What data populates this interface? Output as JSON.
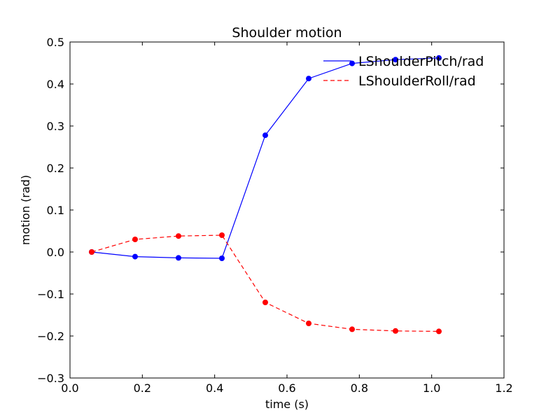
{
  "chart_data": {
    "type": "line",
    "title": "Shoulder motion",
    "xlabel": "time (s)",
    "ylabel": "motion (rad)",
    "xlim": [
      0.0,
      1.2
    ],
    "ylim": [
      -0.3,
      0.5
    ],
    "xticks": [
      0.0,
      0.2,
      0.4,
      0.6,
      0.8,
      1.0,
      1.2
    ],
    "xtick_labels": [
      "0.0",
      "0.2",
      "0.4",
      "0.6",
      "0.8",
      "1.0",
      "1.2"
    ],
    "yticks": [
      -0.3,
      -0.2,
      -0.1,
      0.0,
      0.1,
      0.2,
      0.3,
      0.4,
      0.5
    ],
    "ytick_labels": [
      "−0.3",
      "−0.2",
      "−0.1",
      "0.0",
      "0.1",
      "0.2",
      "0.3",
      "0.4",
      "0.5"
    ],
    "grid": false,
    "legend_position": "top-right",
    "series": [
      {
        "name": "LShoulderPitch/rad",
        "color": "#0000ff",
        "linestyle": "solid",
        "marker": "circle",
        "x": [
          0.06,
          0.18,
          0.3,
          0.42,
          0.54,
          0.66,
          0.78,
          0.9,
          1.02
        ],
        "y": [
          0.0,
          -0.011,
          -0.014,
          -0.015,
          0.278,
          0.413,
          0.449,
          0.458,
          0.462
        ]
      },
      {
        "name": "LShoulderRoll/rad",
        "color": "#ff0000",
        "linestyle": "dashed",
        "marker": "circle",
        "x": [
          0.06,
          0.18,
          0.3,
          0.42,
          0.54,
          0.66,
          0.78,
          0.9,
          1.02
        ],
        "y": [
          0.0,
          0.03,
          0.038,
          0.04,
          -0.12,
          -0.17,
          -0.184,
          -0.188,
          -0.189
        ]
      }
    ]
  }
}
